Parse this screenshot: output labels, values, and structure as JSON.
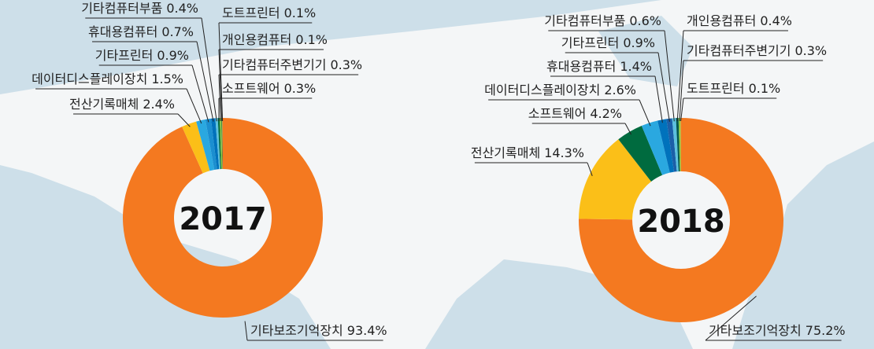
{
  "chart_data": [
    {
      "type": "pie",
      "title": "2017",
      "categories": [
        "기타보조기억장치",
        "전산기록매체",
        "데이터디스플레이장치",
        "기타프린터",
        "휴대용컴퓨터",
        "기타컴퓨터부품",
        "소프트웨어",
        "기타컴퓨터주변기기",
        "개인용컴퓨터",
        "도트프린터"
      ],
      "values": [
        93.4,
        2.4,
        1.5,
        0.9,
        0.7,
        0.4,
        0.3,
        0.3,
        0.1,
        0.1
      ],
      "value_labels": [
        "93.4%",
        "2.4%",
        "1.5%",
        "0.9%",
        "0.7%",
        "0.4%",
        "0.3%",
        "0.3%",
        "0.1%",
        "0.1%"
      ],
      "colors": [
        "#f47920",
        "#fbbf18",
        "#2aa8e0",
        "#1b8fd0",
        "#0072bc",
        "#5bc0de",
        "#006b3f",
        "#8cc63f",
        "#00594f",
        "#e0a030"
      ]
    },
    {
      "type": "pie",
      "title": "2018",
      "categories": [
        "기타보조기억장치",
        "전산기록매체",
        "소프트웨어",
        "데이터디스플레이장치",
        "휴대용컴퓨터",
        "기타프린터",
        "기타컴퓨터부품",
        "개인용컴퓨터",
        "기타컴퓨터주변기기",
        "도트프린터"
      ],
      "values": [
        75.2,
        14.3,
        4.2,
        2.6,
        1.4,
        0.9,
        0.6,
        0.4,
        0.3,
        0.1
      ],
      "value_labels": [
        "75.2%",
        "14.3%",
        "4.2%",
        "2.6%",
        "1.4%",
        "0.9%",
        "0.6%",
        "0.4%",
        "0.3%",
        "0.1%"
      ],
      "colors": [
        "#f47920",
        "#fbbf18",
        "#006b3f",
        "#2aa8e0",
        "#0072bc",
        "#1b5fa8",
        "#5bc0de",
        "#00594f",
        "#8cc63f",
        "#e0a030"
      ]
    }
  ]
}
